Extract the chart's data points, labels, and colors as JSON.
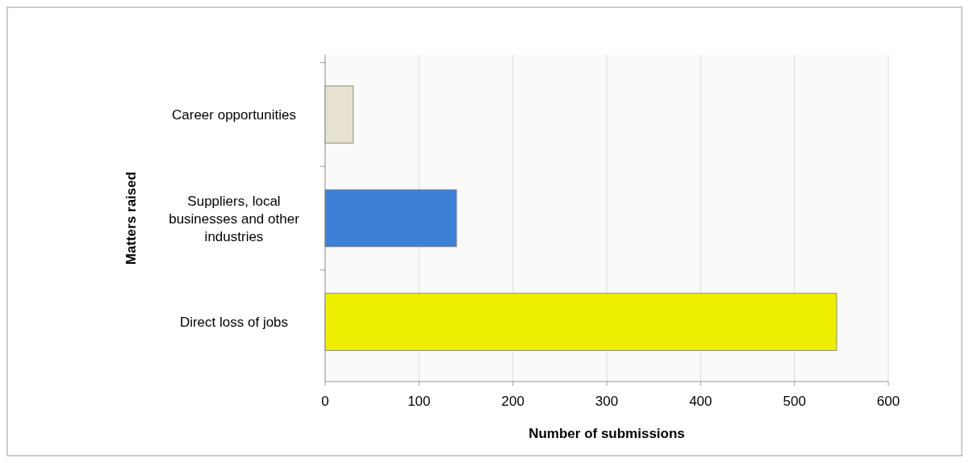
{
  "chart_data": {
    "type": "bar",
    "orientation": "horizontal",
    "xlabel": "Number of submissions",
    "ylabel": "Matters raised",
    "categories": [
      "Career opportunities",
      "Suppliers, local businesses and other industries",
      "Direct loss of jobs"
    ],
    "values": [
      30,
      140,
      545
    ],
    "colors": [
      "#e6e2cf",
      "#3d80d8",
      "#eeee00"
    ],
    "xlim": [
      0,
      600
    ],
    "xticks": [
      0,
      100,
      200,
      300,
      400,
      500,
      600
    ],
    "grid": "x"
  }
}
